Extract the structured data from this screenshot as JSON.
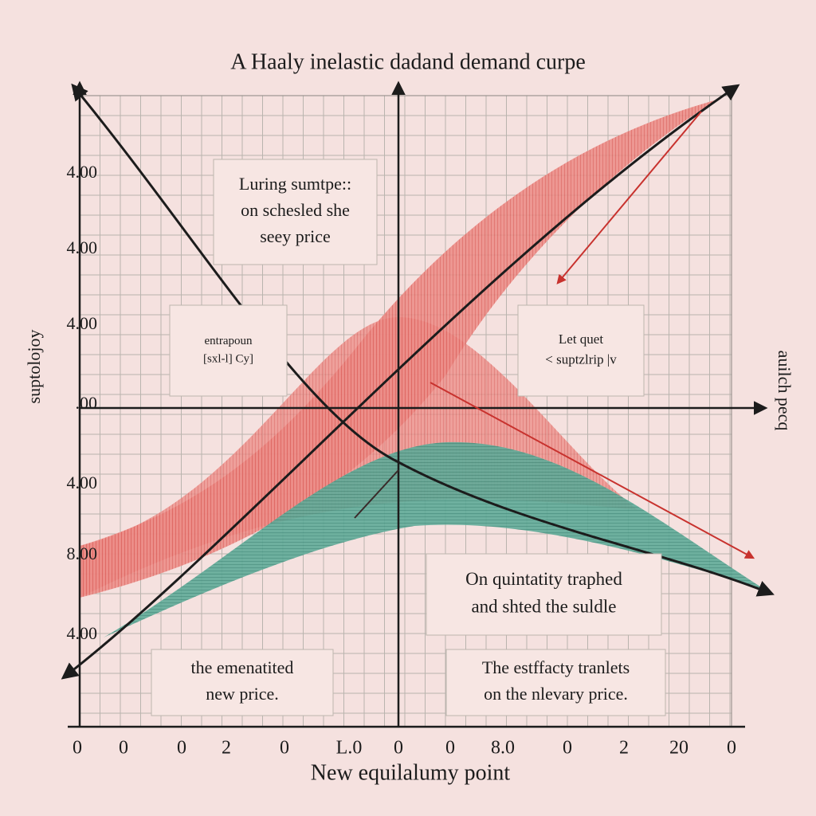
{
  "title": "A Haaly inelastic dadand demand curpe",
  "y_axis_title": "suptolojoy",
  "right_axis_title": "auilch pecq",
  "x_axis_title": "New equilalumy point",
  "y_labels": [
    "4.00",
    "4.00",
    "4.00",
    ".00",
    "4.00",
    "8.00",
    "4.00"
  ],
  "x_labels": [
    "0",
    "0",
    "0",
    "2",
    "0",
    "L.0",
    "0",
    "0",
    "8.0",
    "0",
    "2",
    "20",
    "0"
  ],
  "boxes": [
    {
      "lines": [
        "Luring sumtpe::",
        "on schesled she",
        "seey price"
      ]
    },
    {
      "lines": [
        "entrapoun",
        "[sxl-l] Cy]"
      ]
    },
    {
      "lines": [
        "Let quet",
        "< suptzlrip |v"
      ]
    },
    {
      "lines": [
        "On quintatity traphed",
        "and shted the suldle"
      ]
    },
    {
      "lines": [
        "the emenatited",
        "new price."
      ]
    },
    {
      "lines": [
        "The estffacty tranlets",
        "on the nlevary price."
      ]
    }
  ]
}
